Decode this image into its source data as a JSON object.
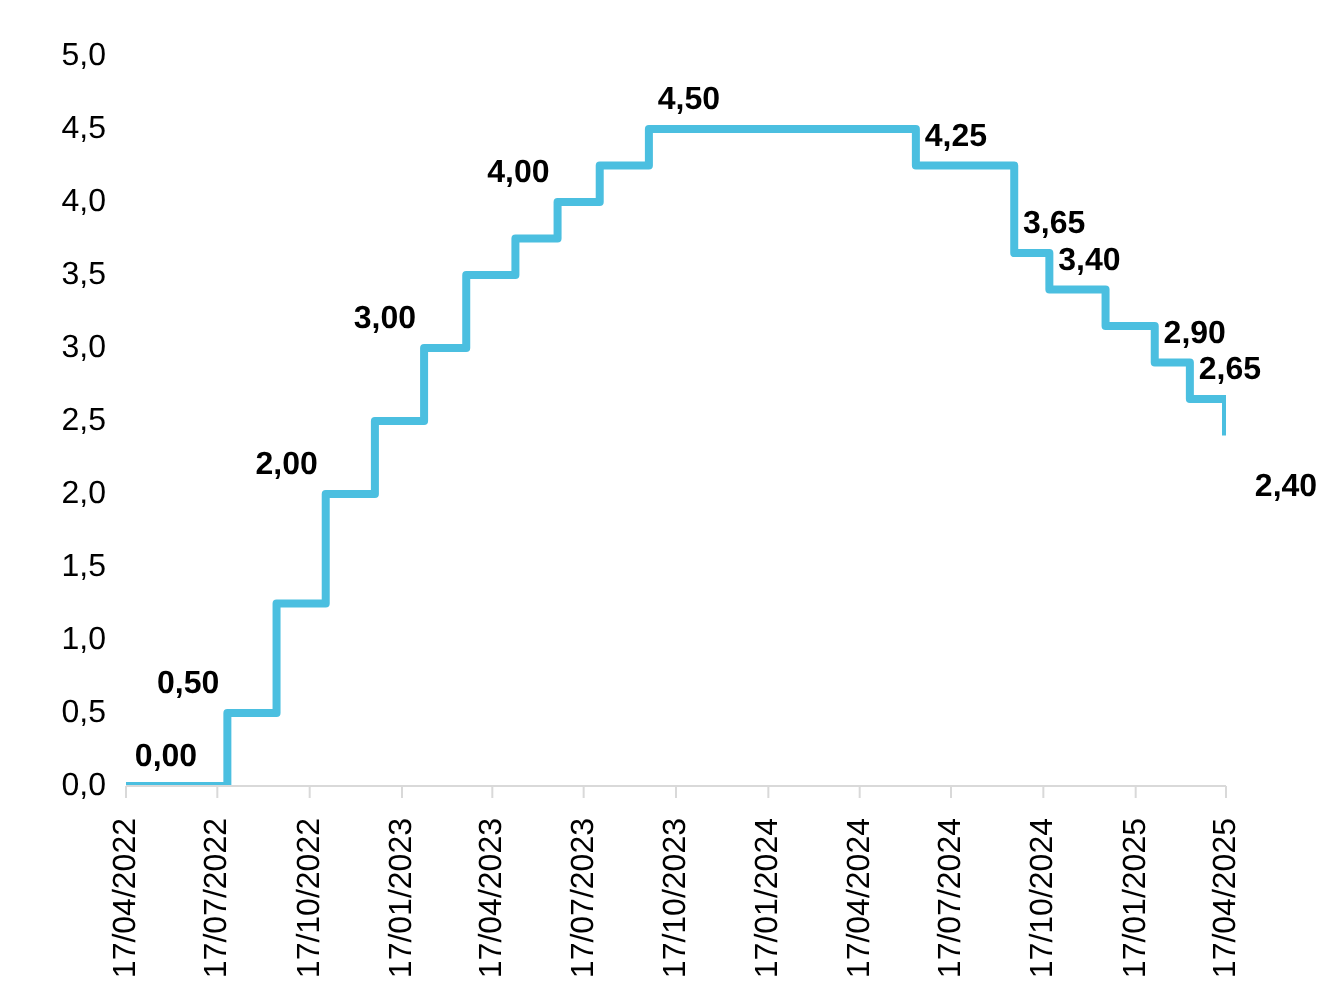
{
  "chart_data": {
    "type": "step",
    "x": [
      "2022-04-17",
      "2022-07-27",
      "2022-09-14",
      "2022-11-02",
      "2022-12-21",
      "2023-02-08",
      "2023-03-22",
      "2023-05-10",
      "2023-06-21",
      "2023-08-02",
      "2023-09-20",
      "2024-06-12",
      "2024-09-18",
      "2024-10-23",
      "2024-12-18",
      "2025-02-05",
      "2025-03-12",
      "2025-04-17"
    ],
    "series": [
      {
        "color": "#4bbfe0",
        "values": [
          0,
          0.5,
          1.25,
          2.0,
          2.5,
          3.0,
          3.5,
          3.75,
          4.0,
          4.25,
          4.5,
          4.25,
          3.65,
          3.4,
          3.15,
          2.9,
          2.65,
          2.4
        ],
        "value_labels": [
          "0,00",
          "0,50",
          null,
          "2,00",
          null,
          "3,00",
          null,
          null,
          "4,00",
          null,
          "4,50",
          "4,25",
          "3,65",
          "3,40",
          null,
          "2,90",
          "2,65",
          "2,40"
        ]
      }
    ],
    "xlim": [
      "2022-04-17",
      "2025-04-17"
    ],
    "xticks": [
      {
        "value": "2022-04-17",
        "label": "17/04/2022"
      },
      {
        "value": "2022-07-17",
        "label": "17/07/2022"
      },
      {
        "value": "2022-10-17",
        "label": "17/10/2022"
      },
      {
        "value": "2023-01-17",
        "label": "17/01/2023"
      },
      {
        "value": "2023-04-17",
        "label": "17/04/2023"
      },
      {
        "value": "2023-07-17",
        "label": "17/07/2023"
      },
      {
        "value": "2023-10-17",
        "label": "17/10/2023"
      },
      {
        "value": "2024-01-17",
        "label": "17/01/2024"
      },
      {
        "value": "2024-04-17",
        "label": "17/04/2024"
      },
      {
        "value": "2024-07-17",
        "label": "17/07/2024"
      },
      {
        "value": "2024-10-17",
        "label": "17/10/2024"
      },
      {
        "value": "2025-01-17",
        "label": "17/01/2025"
      },
      {
        "value": "2025-04-17",
        "label": "17/04/2025"
      }
    ],
    "ylim": [
      0,
      5
    ],
    "yticks": [
      {
        "value": 0,
        "label": "0,0"
      },
      {
        "value": 0.5,
        "label": "0,5"
      },
      {
        "value": 1,
        "label": "1,0"
      },
      {
        "value": 1.5,
        "label": "1,5"
      },
      {
        "value": 2,
        "label": "2,0"
      },
      {
        "value": 2.5,
        "label": "2,5"
      },
      {
        "value": 3,
        "label": "3,0"
      },
      {
        "value": 3.5,
        "label": "3,5"
      },
      {
        "value": 4,
        "label": "4,0"
      },
      {
        "value": 4.5,
        "label": "4,5"
      },
      {
        "value": 5,
        "label": "5,0"
      }
    ],
    "grid": false,
    "marker": "none",
    "line_style": "solid"
  }
}
